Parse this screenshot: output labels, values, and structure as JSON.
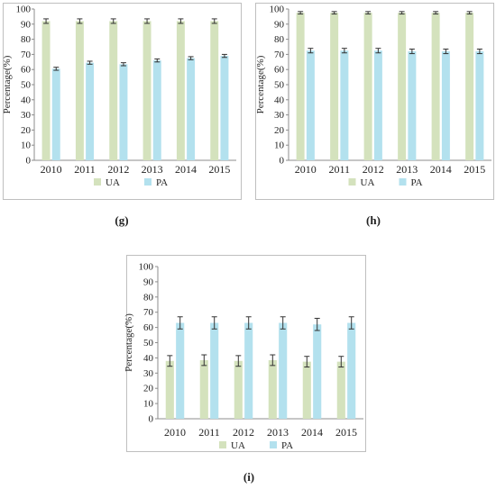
{
  "colors": {
    "UA": "#d4e2bd",
    "PA": "#b3e1ee",
    "error_bar": "#333333",
    "frame": "#bfbfbf"
  },
  "chart_data": [
    {
      "panel": "(g)",
      "type": "bar",
      "categories": [
        "2010",
        "2011",
        "2012",
        "2013",
        "2014",
        "2015"
      ],
      "ylabel": "Percentage(%)",
      "ylim": [
        0,
        100
      ],
      "yticks": [
        0,
        10,
        20,
        30,
        40,
        50,
        60,
        70,
        80,
        90,
        100
      ],
      "grid": false,
      "legend": "bottom",
      "series": [
        {
          "name": "UA",
          "values": [
            92,
            92,
            92,
            92,
            92,
            92
          ],
          "errors": [
            1.5,
            1.5,
            1.5,
            1.5,
            1.5,
            1.5
          ]
        },
        {
          "name": "PA",
          "values": [
            60.5,
            64.5,
            63.5,
            66,
            67.5,
            69
          ],
          "errors": [
            1,
            1,
            1,
            1,
            1,
            1
          ]
        }
      ]
    },
    {
      "panel": "(h)",
      "type": "bar",
      "categories": [
        "2010",
        "2011",
        "2012",
        "2013",
        "2014",
        "2015"
      ],
      "ylabel": "Percentage(%)",
      "ylim": [
        0,
        100
      ],
      "yticks": [
        0,
        10,
        20,
        30,
        40,
        50,
        60,
        70,
        80,
        90,
        100
      ],
      "grid": false,
      "legend": "bottom",
      "series": [
        {
          "name": "UA",
          "values": [
            97.5,
            97.5,
            97.5,
            97.5,
            97.5,
            97.5
          ],
          "errors": [
            0.8,
            0.8,
            0.8,
            0.8,
            0.8,
            0.8
          ]
        },
        {
          "name": "PA",
          "values": [
            72.5,
            72.5,
            72.5,
            72,
            72,
            72
          ],
          "errors": [
            1.5,
            1.5,
            1.5,
            1.5,
            1.5,
            1.5
          ]
        }
      ]
    },
    {
      "panel": "(i)",
      "type": "bar",
      "categories": [
        "2010",
        "2011",
        "2012",
        "2013",
        "2014",
        "2015"
      ],
      "ylabel": "Percentage(%)",
      "ylim": [
        0,
        100
      ],
      "yticks": [
        0,
        10,
        20,
        30,
        40,
        50,
        60,
        70,
        80,
        90,
        100
      ],
      "grid": false,
      "legend": "bottom",
      "series": [
        {
          "name": "UA",
          "values": [
            38,
            38.5,
            38,
            38.5,
            37.5,
            37.5
          ],
          "errors": [
            3.5,
            3.5,
            3.5,
            3.5,
            3.5,
            3.5
          ]
        },
        {
          "name": "PA",
          "values": [
            63,
            63,
            63,
            63,
            62,
            63
          ],
          "errors": [
            4,
            4,
            4,
            4,
            4,
            4
          ]
        }
      ]
    }
  ]
}
